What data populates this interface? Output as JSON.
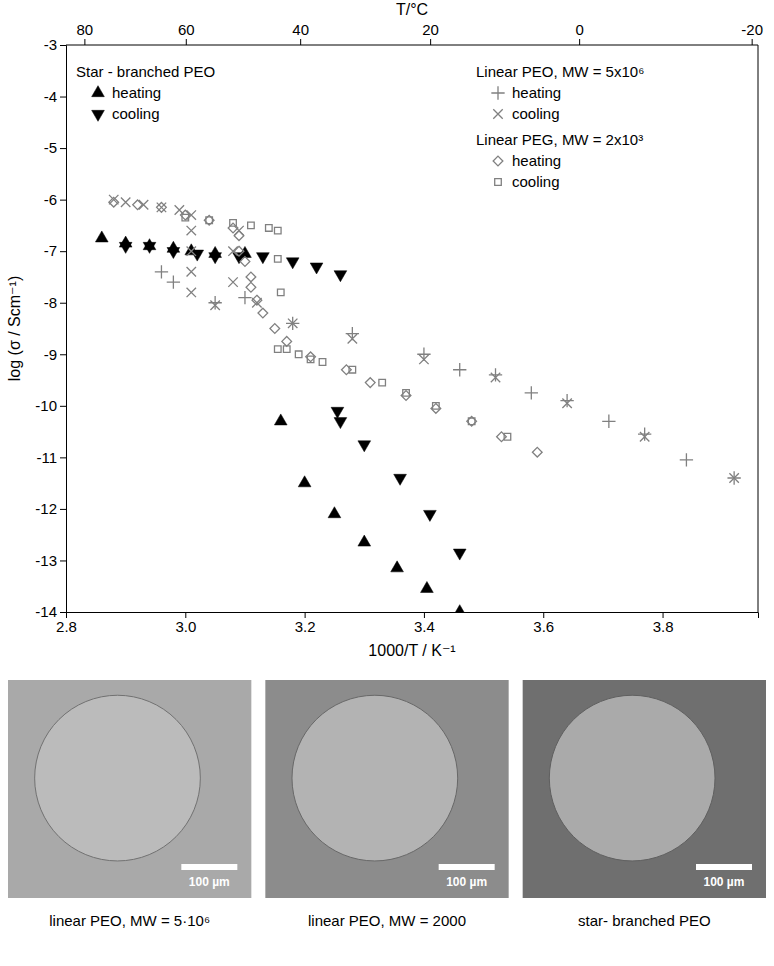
{
  "chart_data": {
    "type": "scatter",
    "x_label": "1000/T / K⁻¹",
    "y_label": "log (σ / Scm⁻¹)",
    "x2_label": "T/°C",
    "xlim": [
      2.8,
      3.96
    ],
    "xticks": [
      2.8,
      {
        "value": 3,
        "label": "3.0"
      },
      3.2,
      3.4,
      3.6,
      3.8
    ],
    "x2lim": [
      83.99,
      -20.62
    ],
    "x2ticks": [
      80,
      60,
      40,
      20,
      0,
      -20
    ],
    "ylim": [
      -14,
      -3
    ],
    "yticks": [
      -14,
      -13,
      -12,
      -11,
      -10,
      -9,
      -8,
      -7,
      -6,
      -5,
      -4,
      -3
    ],
    "legend": "top",
    "series": [
      {
        "name": "heating",
        "group": "Star - branched PEO",
        "color": "#000000",
        "marker": "triangle-up",
        "x": [
          2.86,
          2.9,
          2.94,
          2.98,
          3.01,
          3.05,
          3.1,
          3.16,
          3.2,
          3.25,
          3.3,
          3.355,
          3.405,
          3.46
        ],
        "values": [
          -6.75,
          -6.85,
          -6.9,
          -6.95,
          -7.0,
          -7.05,
          -7.05,
          -10.3,
          -11.5,
          -12.1,
          -12.65,
          -13.15,
          -13.55,
          -14.0
        ]
      },
      {
        "name": "cooling",
        "group": "Star - branched PEO",
        "color": "#000000",
        "marker": "triangle-down",
        "x": [
          2.9,
          2.94,
          2.98,
          3.02,
          3.05,
          3.09,
          3.13,
          3.18,
          3.22,
          3.26,
          3.255,
          3.26,
          3.3,
          3.36,
          3.41,
          3.46
        ],
        "values": [
          -6.9,
          -6.9,
          -7.0,
          -7.05,
          -7.1,
          -7.1,
          -7.1,
          -7.2,
          -7.3,
          -7.45,
          -10.1,
          -10.3,
          -10.75,
          -11.4,
          -12.1,
          -12.85
        ]
      },
      {
        "name": "heating",
        "group": "Linear PEO, MW = 5x10⁶",
        "color": "#808080",
        "marker": "plus",
        "x": [
          2.96,
          2.98,
          3.05,
          3.1,
          3.18,
          3.28,
          3.4,
          3.46,
          3.52,
          3.58,
          3.64,
          3.71,
          3.77,
          3.84,
          3.92
        ],
        "values": [
          -7.4,
          -7.6,
          -8.0,
          -7.9,
          -8.4,
          -8.6,
          -9.0,
          -9.3,
          -9.4,
          -9.75,
          -9.9,
          -10.3,
          -10.55,
          -11.05,
          -11.4
        ]
      },
      {
        "name": "cooling",
        "group": "Linear PEO, MW = 5x10⁶",
        "color": "#808080",
        "marker": "cross",
        "x": [
          2.88,
          2.9,
          2.93,
          2.96,
          2.99,
          3.01,
          3.01,
          3.01,
          3.01,
          3.01,
          3.05,
          3.08,
          3.08,
          3.09,
          3.12,
          3.18,
          3.28,
          3.4,
          3.52,
          3.64,
          3.77,
          3.92
        ],
        "values": [
          -6.0,
          -6.05,
          -6.1,
          -6.15,
          -6.2,
          -6.3,
          -6.6,
          -7.0,
          -7.4,
          -7.8,
          -8.05,
          -7.6,
          -7.0,
          -6.6,
          -8.0,
          -8.4,
          -8.7,
          -9.1,
          -9.45,
          -9.95,
          -10.6,
          -11.4
        ]
      },
      {
        "name": "heating",
        "group": "Linear PEG, MW = 2x10³",
        "color": "#808080",
        "marker": "diamond-open",
        "x": [
          2.88,
          2.92,
          2.96,
          3.0,
          3.04,
          3.08,
          3.09,
          3.09,
          3.1,
          3.11,
          3.11,
          3.12,
          3.13,
          3.15,
          3.17,
          3.21,
          3.27,
          3.31,
          3.37,
          3.42,
          3.48,
          3.53,
          3.59
        ],
        "values": [
          -6.05,
          -6.1,
          -6.15,
          -6.3,
          -6.4,
          -6.55,
          -6.7,
          -7.0,
          -7.2,
          -7.5,
          -7.7,
          -7.95,
          -8.2,
          -8.5,
          -8.75,
          -9.05,
          -9.3,
          -9.55,
          -9.8,
          -10.05,
          -10.3,
          -10.6,
          -10.9
        ]
      },
      {
        "name": "cooling",
        "group": "Linear PEG, MW = 2x10³",
        "color": "#808080",
        "marker": "square-open",
        "x": [
          3.0,
          3.04,
          3.08,
          3.11,
          3.14,
          3.155,
          3.155,
          3.16,
          3.155,
          3.17,
          3.19,
          3.21,
          3.23,
          3.28,
          3.33,
          3.37,
          3.42,
          3.48,
          3.54
        ],
        "values": [
          -6.35,
          -6.4,
          -6.45,
          -6.5,
          -6.55,
          -6.6,
          -7.15,
          -7.8,
          -8.9,
          -8.9,
          -9.0,
          -9.1,
          -9.15,
          -9.3,
          -9.55,
          -9.75,
          -10.0,
          -10.3,
          -10.6
        ]
      }
    ]
  },
  "micrographs": [
    {
      "caption": "linear PEO, MW = 5·10⁶",
      "scale_bar": "100 µm"
    },
    {
      "caption": "linear PEO, MW = 2000",
      "scale_bar": "100 µm"
    },
    {
      "caption": "star- branched PEO",
      "scale_bar": "100 µm"
    }
  ]
}
